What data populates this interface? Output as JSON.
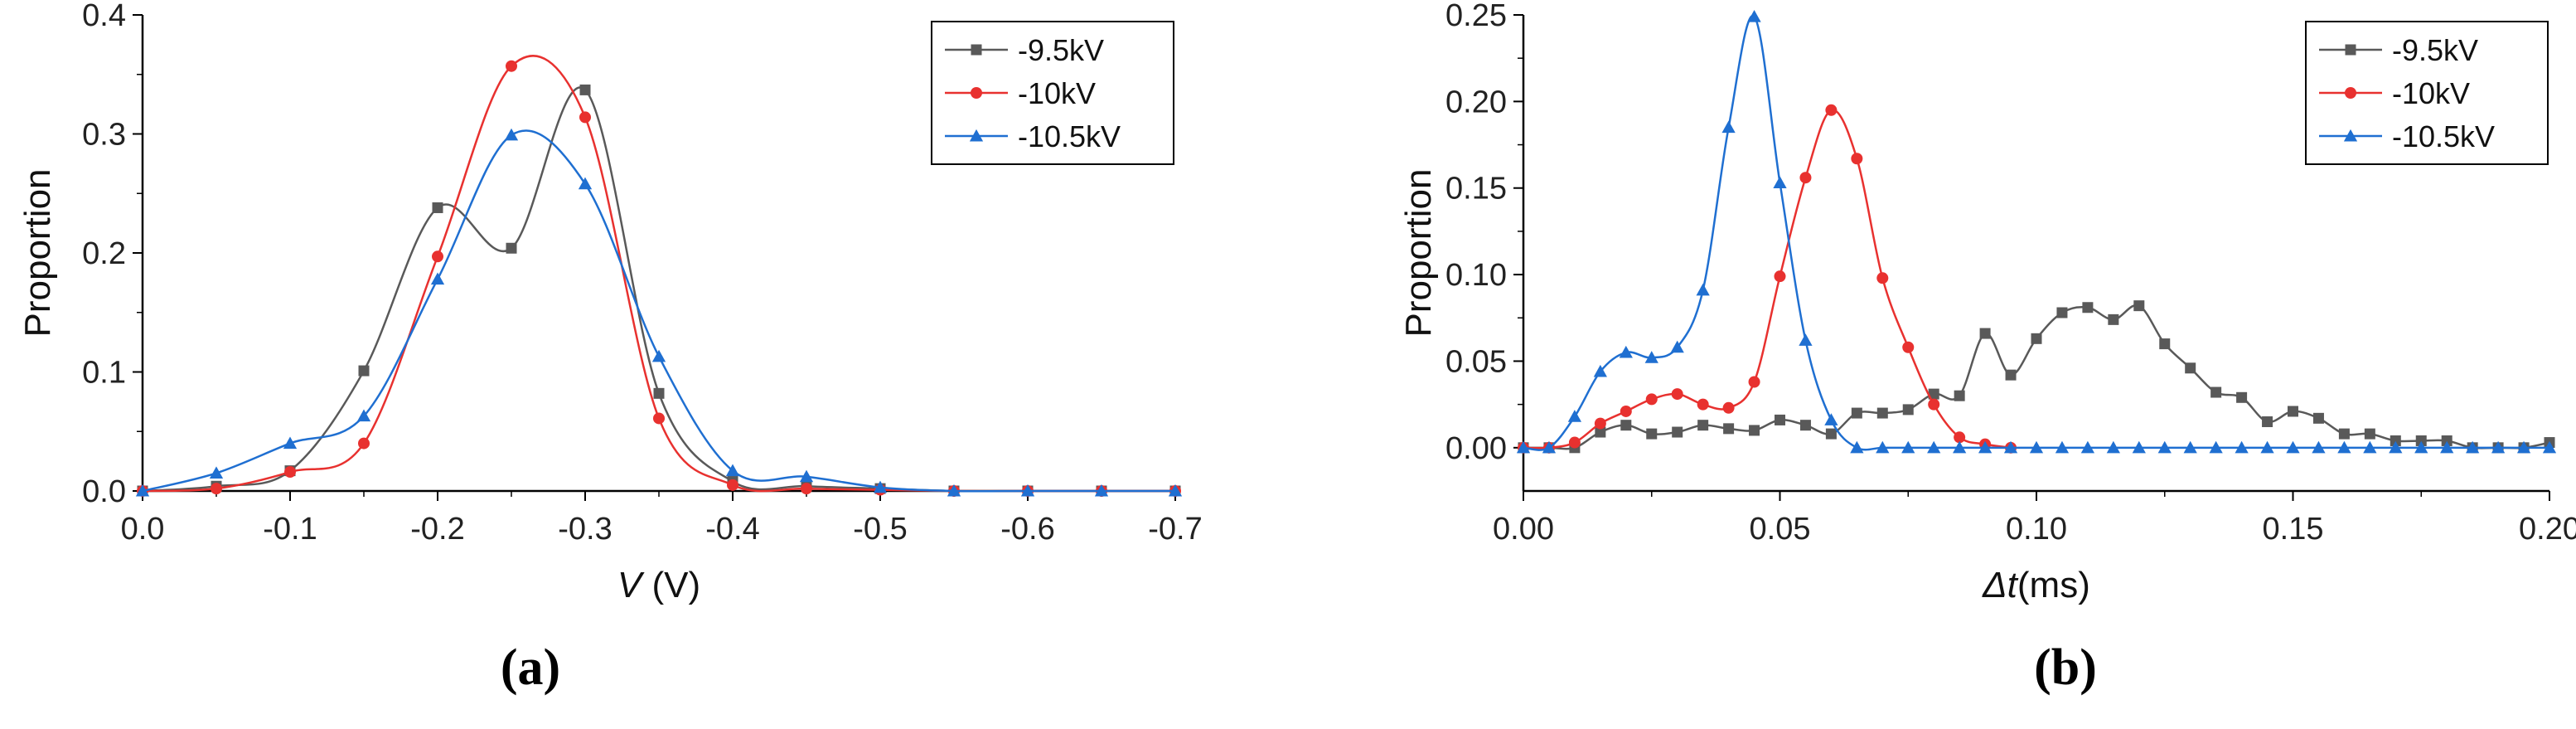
{
  "chart_data": [
    {
      "type": "line",
      "panel_label": "(a)",
      "xlabel_var": "V",
      "xlabel_unit": " (V)",
      "ylabel": "Proportion",
      "xlim": [
        0.0,
        -0.7
      ],
      "ylim": [
        0.0,
        0.4
      ],
      "xticks": [
        "0.0",
        "-0.1",
        "-0.2",
        "-0.3",
        "-0.4",
        "-0.5",
        "-0.6",
        "-0.7"
      ],
      "yticks": [
        "0.0",
        "0.1",
        "0.2",
        "0.3",
        "0.4"
      ],
      "legend_position": "top-right",
      "series": [
        {
          "name": "-9.5kV",
          "color": "#595959",
          "marker": "square",
          "x": [
            0.0,
            -0.05,
            -0.1,
            -0.15,
            -0.2,
            -0.25,
            -0.3,
            -0.35,
            -0.4,
            -0.45,
            -0.5,
            -0.55,
            -0.6,
            -0.65,
            -0.7
          ],
          "y": [
            0.0,
            0.004,
            0.017,
            0.101,
            0.238,
            0.204,
            0.337,
            0.082,
            0.008,
            0.004,
            0.002,
            0.0,
            0.0,
            0.0,
            0.0
          ]
        },
        {
          "name": "-10kV",
          "color": "#e8312f",
          "marker": "circle",
          "x": [
            0.0,
            -0.05,
            -0.1,
            -0.15,
            -0.2,
            -0.25,
            -0.3,
            -0.35,
            -0.4,
            -0.45,
            -0.5,
            -0.55,
            -0.6,
            -0.65,
            -0.7
          ],
          "y": [
            0.0,
            0.002,
            0.016,
            0.04,
            0.197,
            0.357,
            0.314,
            0.061,
            0.005,
            0.002,
            0.001,
            0.0,
            0.0,
            0.0,
            0.0
          ]
        },
        {
          "name": "-10.5kV",
          "color": "#1f6fd1",
          "marker": "triangle",
          "x": [
            0.0,
            -0.05,
            -0.1,
            -0.15,
            -0.2,
            -0.25,
            -0.3,
            -0.35,
            -0.4,
            -0.45,
            -0.5,
            -0.55,
            -0.6,
            -0.65,
            -0.7
          ],
          "y": [
            0.0,
            0.015,
            0.04,
            0.063,
            0.178,
            0.299,
            0.258,
            0.113,
            0.017,
            0.012,
            0.003,
            0.0,
            0.0,
            0.0,
            0.0
          ]
        }
      ]
    },
    {
      "type": "line",
      "panel_label": "(b)",
      "xlabel_var": "Δt",
      "xlabel_unit": "(ms)",
      "ylabel": "Proportion",
      "xlim": [
        0.0,
        0.2
      ],
      "ylim": [
        -0.025,
        0.25
      ],
      "xticks": [
        "0.00",
        "0.05",
        "0.10",
        "0.15",
        "0.20"
      ],
      "yticks": [
        "0.00",
        "0.05",
        "0.10",
        "0.15",
        "0.20",
        "0.25"
      ],
      "legend_position": "top-right",
      "series": [
        {
          "name": "-9.5kV",
          "color": "#595959",
          "marker": "square",
          "x": [
            0.0,
            0.005,
            0.01,
            0.015,
            0.02,
            0.025,
            0.03,
            0.035,
            0.04,
            0.045,
            0.05,
            0.055,
            0.06,
            0.065,
            0.07,
            0.075,
            0.08,
            0.085,
            0.09,
            0.095,
            0.1,
            0.105,
            0.11,
            0.115,
            0.12,
            0.125,
            0.13,
            0.135,
            0.14,
            0.145,
            0.15,
            0.155,
            0.16,
            0.165,
            0.17,
            0.175,
            0.18,
            0.185,
            0.19,
            0.195,
            0.2
          ],
          "y": [
            0.0,
            0.0,
            0.0,
            0.009,
            0.013,
            0.008,
            0.009,
            0.013,
            0.011,
            0.01,
            0.016,
            0.013,
            0.008,
            0.02,
            0.02,
            0.022,
            0.031,
            0.03,
            0.066,
            0.042,
            0.063,
            0.078,
            0.081,
            0.074,
            0.082,
            0.06,
            0.046,
            0.032,
            0.029,
            0.015,
            0.021,
            0.017,
            0.008,
            0.008,
            0.004,
            0.004,
            0.004,
            0.0,
            0.0,
            0.0,
            0.003
          ]
        },
        {
          "name": "-10kV",
          "color": "#e8312f",
          "marker": "circle",
          "x": [
            0.0,
            0.005,
            0.01,
            0.015,
            0.02,
            0.025,
            0.03,
            0.035,
            0.04,
            0.045,
            0.05,
            0.055,
            0.06,
            0.065,
            0.07,
            0.075,
            0.08,
            0.085,
            0.09,
            0.095
          ],
          "y": [
            0.0,
            0.0,
            0.003,
            0.014,
            0.021,
            0.028,
            0.031,
            0.025,
            0.023,
            0.038,
            0.099,
            0.156,
            0.195,
            0.167,
            0.098,
            0.058,
            0.025,
            0.006,
            0.002,
            0.0
          ]
        },
        {
          "name": "-10.5kV",
          "color": "#1f6fd1",
          "marker": "triangle",
          "x": [
            0.0,
            0.005,
            0.01,
            0.015,
            0.02,
            0.025,
            0.03,
            0.035,
            0.04,
            0.045,
            0.05,
            0.055,
            0.06,
            0.065,
            0.07,
            0.075,
            0.08,
            0.085,
            0.09,
            0.095,
            0.1,
            0.105,
            0.11,
            0.115,
            0.12,
            0.125,
            0.13,
            0.135,
            0.14,
            0.145,
            0.15,
            0.155,
            0.16,
            0.165,
            0.17,
            0.175,
            0.18,
            0.185,
            0.19,
            0.195,
            0.2
          ],
          "y": [
            0.0,
            0.0,
            0.018,
            0.044,
            0.055,
            0.052,
            0.058,
            0.091,
            0.185,
            0.249,
            0.153,
            0.062,
            0.016,
            0.0,
            0.0,
            0.0,
            0.0,
            0.0,
            0.0,
            0.0,
            0.0,
            0.0,
            0.0,
            0.0,
            0.0,
            0.0,
            0.0,
            0.0,
            0.0,
            0.0,
            0.0,
            0.0,
            0.0,
            0.0,
            0.0,
            0.0,
            0.0,
            0.0,
            0.0,
            0.0,
            0.0
          ]
        }
      ]
    }
  ]
}
